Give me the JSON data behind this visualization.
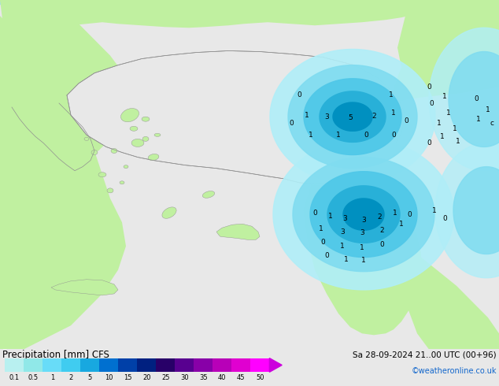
{
  "title": "Precipitation [mm] CFS",
  "date_label": "Sa 28-09-2024 21..00 UTC (00+96)",
  "credit": "©weatheronline.co.uk",
  "colorbar_values": [
    0.1,
    0.5,
    1,
    2,
    5,
    10,
    15,
    20,
    25,
    30,
    35,
    40,
    45,
    50
  ],
  "colorbar_colors": [
    "#b8f0f0",
    "#90e8e8",
    "#68dcf8",
    "#40ccf0",
    "#18a8e0",
    "#0070d0",
    "#0040a8",
    "#002080",
    "#280068",
    "#580090",
    "#8800a8",
    "#b800b8",
    "#e000d0",
    "#ff00ff"
  ],
  "sea_color": "#e8e8e8",
  "land_color": "#c0f0a0",
  "turkey_color": "#e8e8e8",
  "fig_width": 6.34,
  "fig_height": 4.9,
  "dpi": 100,
  "border_color": "#909090",
  "precip_light": "#90e8f8",
  "precip_mid1": "#60d0f0",
  "precip_mid2": "#30b0e0",
  "precip_dark": "#1080c8",
  "precip_core": "#0060b0"
}
